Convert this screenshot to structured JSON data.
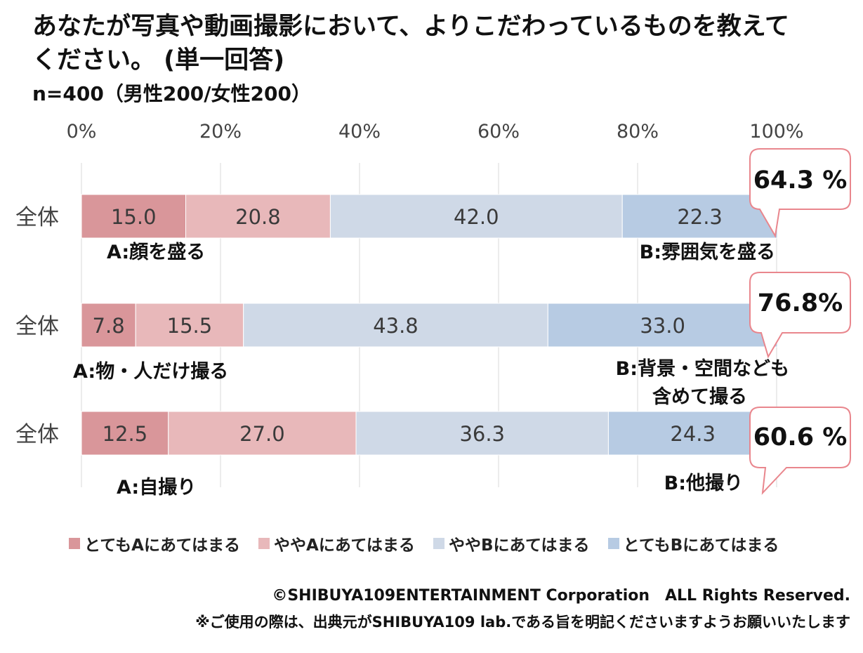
{
  "title": "あなたが写真や動画撮影において、よりこだわっているものを教えてください。 (単一回答)",
  "subtitle": "n=400（男性200/女性200）",
  "colors": {
    "a_strong": "#d9969a",
    "a_slight": "#e8b8ba",
    "b_slight": "#cfd9e7",
    "b_strong": "#b7cbe3",
    "callout_border": "#e9868d",
    "grid": "#d9d9d9"
  },
  "chart_data": {
    "type": "bar",
    "orientation": "horizontal-stacked-100",
    "title": "あなたが写真や動画撮影において、よりこだわっているものを教えてください。 (単一回答)",
    "x_ticks": [
      "0%",
      "20%",
      "40%",
      "60%",
      "80%",
      "100%"
    ],
    "xlim": [
      0,
      100
    ],
    "categories": [
      "全体",
      "全体",
      "全体"
    ],
    "series": [
      {
        "name": "とてもAにあてはまる",
        "values": [
          15.0,
          7.8,
          12.5
        ],
        "labels": [
          "15.0",
          "7.8",
          "12.5"
        ]
      },
      {
        "name": "ややAにあてはまる",
        "values": [
          20.8,
          15.5,
          27.0
        ],
        "labels": [
          "20.8",
          "15.5",
          "27.0"
        ]
      },
      {
        "name": "ややBにあてはまる",
        "values": [
          42.0,
          43.8,
          36.3
        ],
        "labels": [
          "42.0",
          "43.8",
          "36.3"
        ]
      },
      {
        "name": "とてもBにあてはまる",
        "values": [
          22.3,
          33.0,
          24.3
        ],
        "labels": [
          "22.3",
          "33.0",
          "24.3"
        ]
      }
    ],
    "a_labels": [
      "A:顔を盛る",
      "A:物・人だけ撮る",
      "A:自撮り"
    ],
    "b_labels": [
      [
        "B:雰囲気を盛る"
      ],
      [
        "B:背景・空間なども",
        "含めて撮る"
      ],
      [
        "B:他撮り"
      ]
    ],
    "callouts": [
      "64.3 %",
      "76.8%",
      "60.6 %"
    ]
  },
  "legend": [
    "とてもAにあてはまる",
    "ややAにあてはまる",
    "ややBにあてはまる",
    "とてもBにあてはまる"
  ],
  "footer": {
    "copyright": "©SHIBUYA109ENTERTAINMENT Corporation　ALL Rights Reserved.",
    "notice": "※ご使用の際は、出典元がSHIBUYA109 lab.である旨を明記くださいますようお願いいたします"
  }
}
